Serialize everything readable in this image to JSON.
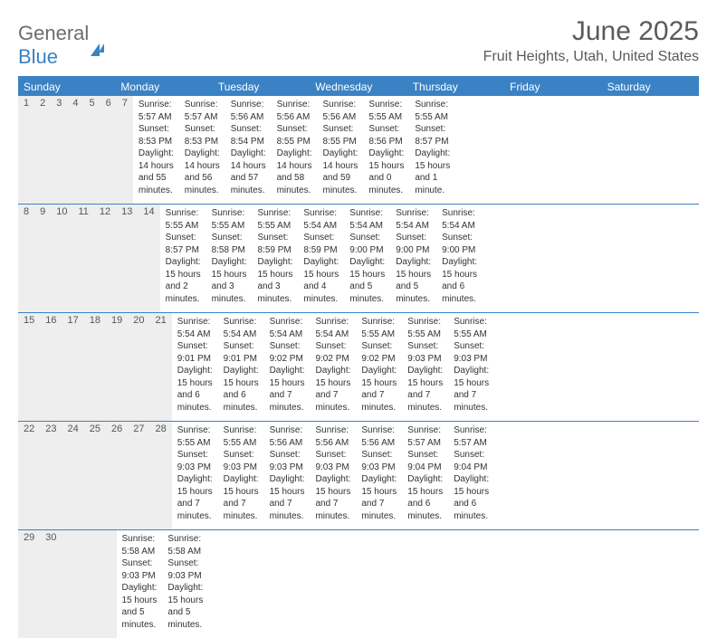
{
  "brand": {
    "word1": "General",
    "word2": "Blue"
  },
  "title": "June 2025",
  "location": "Fruit Heights, Utah, United States",
  "colors": {
    "accent": "#3b82c4",
    "header_bg": "#3b82c4",
    "daynum_bg": "#eeeeee",
    "text": "#333333",
    "muted": "#5a5a5a"
  },
  "dow": [
    "Sunday",
    "Monday",
    "Tuesday",
    "Wednesday",
    "Thursday",
    "Friday",
    "Saturday"
  ],
  "weeks": [
    [
      {
        "n": "1",
        "sr": "Sunrise: 5:57 AM",
        "ss": "Sunset: 8:53 PM",
        "d1": "Daylight: 14 hours",
        "d2": "and 55 minutes."
      },
      {
        "n": "2",
        "sr": "Sunrise: 5:57 AM",
        "ss": "Sunset: 8:53 PM",
        "d1": "Daylight: 14 hours",
        "d2": "and 56 minutes."
      },
      {
        "n": "3",
        "sr": "Sunrise: 5:56 AM",
        "ss": "Sunset: 8:54 PM",
        "d1": "Daylight: 14 hours",
        "d2": "and 57 minutes."
      },
      {
        "n": "4",
        "sr": "Sunrise: 5:56 AM",
        "ss": "Sunset: 8:55 PM",
        "d1": "Daylight: 14 hours",
        "d2": "and 58 minutes."
      },
      {
        "n": "5",
        "sr": "Sunrise: 5:56 AM",
        "ss": "Sunset: 8:55 PM",
        "d1": "Daylight: 14 hours",
        "d2": "and 59 minutes."
      },
      {
        "n": "6",
        "sr": "Sunrise: 5:55 AM",
        "ss": "Sunset: 8:56 PM",
        "d1": "Daylight: 15 hours",
        "d2": "and 0 minutes."
      },
      {
        "n": "7",
        "sr": "Sunrise: 5:55 AM",
        "ss": "Sunset: 8:57 PM",
        "d1": "Daylight: 15 hours",
        "d2": "and 1 minute."
      }
    ],
    [
      {
        "n": "8",
        "sr": "Sunrise: 5:55 AM",
        "ss": "Sunset: 8:57 PM",
        "d1": "Daylight: 15 hours",
        "d2": "and 2 minutes."
      },
      {
        "n": "9",
        "sr": "Sunrise: 5:55 AM",
        "ss": "Sunset: 8:58 PM",
        "d1": "Daylight: 15 hours",
        "d2": "and 3 minutes."
      },
      {
        "n": "10",
        "sr": "Sunrise: 5:55 AM",
        "ss": "Sunset: 8:59 PM",
        "d1": "Daylight: 15 hours",
        "d2": "and 3 minutes."
      },
      {
        "n": "11",
        "sr": "Sunrise: 5:54 AM",
        "ss": "Sunset: 8:59 PM",
        "d1": "Daylight: 15 hours",
        "d2": "and 4 minutes."
      },
      {
        "n": "12",
        "sr": "Sunrise: 5:54 AM",
        "ss": "Sunset: 9:00 PM",
        "d1": "Daylight: 15 hours",
        "d2": "and 5 minutes."
      },
      {
        "n": "13",
        "sr": "Sunrise: 5:54 AM",
        "ss": "Sunset: 9:00 PM",
        "d1": "Daylight: 15 hours",
        "d2": "and 5 minutes."
      },
      {
        "n": "14",
        "sr": "Sunrise: 5:54 AM",
        "ss": "Sunset: 9:00 PM",
        "d1": "Daylight: 15 hours",
        "d2": "and 6 minutes."
      }
    ],
    [
      {
        "n": "15",
        "sr": "Sunrise: 5:54 AM",
        "ss": "Sunset: 9:01 PM",
        "d1": "Daylight: 15 hours",
        "d2": "and 6 minutes."
      },
      {
        "n": "16",
        "sr": "Sunrise: 5:54 AM",
        "ss": "Sunset: 9:01 PM",
        "d1": "Daylight: 15 hours",
        "d2": "and 6 minutes."
      },
      {
        "n": "17",
        "sr": "Sunrise: 5:54 AM",
        "ss": "Sunset: 9:02 PM",
        "d1": "Daylight: 15 hours",
        "d2": "and 7 minutes."
      },
      {
        "n": "18",
        "sr": "Sunrise: 5:54 AM",
        "ss": "Sunset: 9:02 PM",
        "d1": "Daylight: 15 hours",
        "d2": "and 7 minutes."
      },
      {
        "n": "19",
        "sr": "Sunrise: 5:55 AM",
        "ss": "Sunset: 9:02 PM",
        "d1": "Daylight: 15 hours",
        "d2": "and 7 minutes."
      },
      {
        "n": "20",
        "sr": "Sunrise: 5:55 AM",
        "ss": "Sunset: 9:03 PM",
        "d1": "Daylight: 15 hours",
        "d2": "and 7 minutes."
      },
      {
        "n": "21",
        "sr": "Sunrise: 5:55 AM",
        "ss": "Sunset: 9:03 PM",
        "d1": "Daylight: 15 hours",
        "d2": "and 7 minutes."
      }
    ],
    [
      {
        "n": "22",
        "sr": "Sunrise: 5:55 AM",
        "ss": "Sunset: 9:03 PM",
        "d1": "Daylight: 15 hours",
        "d2": "and 7 minutes."
      },
      {
        "n": "23",
        "sr": "Sunrise: 5:55 AM",
        "ss": "Sunset: 9:03 PM",
        "d1": "Daylight: 15 hours",
        "d2": "and 7 minutes."
      },
      {
        "n": "24",
        "sr": "Sunrise: 5:56 AM",
        "ss": "Sunset: 9:03 PM",
        "d1": "Daylight: 15 hours",
        "d2": "and 7 minutes."
      },
      {
        "n": "25",
        "sr": "Sunrise: 5:56 AM",
        "ss": "Sunset: 9:03 PM",
        "d1": "Daylight: 15 hours",
        "d2": "and 7 minutes."
      },
      {
        "n": "26",
        "sr": "Sunrise: 5:56 AM",
        "ss": "Sunset: 9:03 PM",
        "d1": "Daylight: 15 hours",
        "d2": "and 7 minutes."
      },
      {
        "n": "27",
        "sr": "Sunrise: 5:57 AM",
        "ss": "Sunset: 9:04 PM",
        "d1": "Daylight: 15 hours",
        "d2": "and 6 minutes."
      },
      {
        "n": "28",
        "sr": "Sunrise: 5:57 AM",
        "ss": "Sunset: 9:04 PM",
        "d1": "Daylight: 15 hours",
        "d2": "and 6 minutes."
      }
    ],
    [
      {
        "n": "29",
        "sr": "Sunrise: 5:58 AM",
        "ss": "Sunset: 9:03 PM",
        "d1": "Daylight: 15 hours",
        "d2": "and 5 minutes."
      },
      {
        "n": "30",
        "sr": "Sunrise: 5:58 AM",
        "ss": "Sunset: 9:03 PM",
        "d1": "Daylight: 15 hours",
        "d2": "and 5 minutes."
      },
      null,
      null,
      null,
      null,
      null
    ]
  ]
}
